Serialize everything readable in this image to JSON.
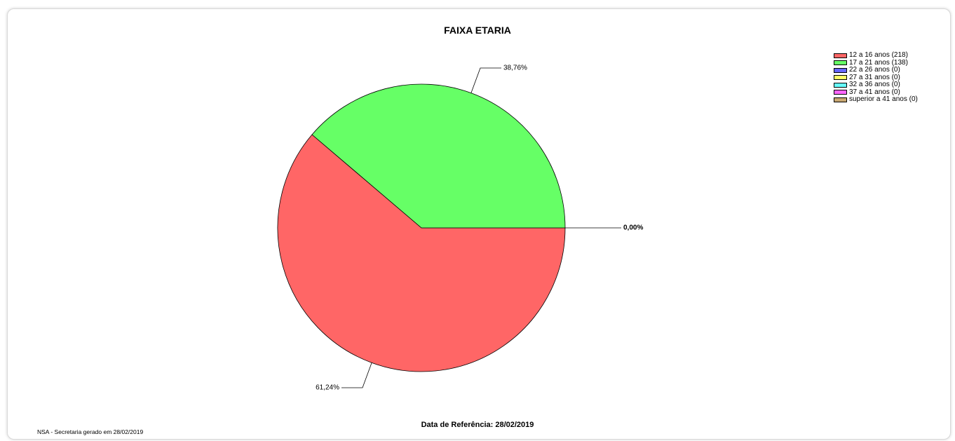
{
  "chart_data": {
    "type": "pie",
    "title": "FAIXA ETARIA",
    "slices": [
      {
        "label": "12 a 16 anos (218)",
        "value": 218,
        "percent_label": "61,24%",
        "color": "#ff6666"
      },
      {
        "label": "17 a 21 anos (138)",
        "value": 138,
        "percent_label": "38,76%",
        "color": "#66ff66"
      },
      {
        "label": "22 a 26 anos (0)",
        "value": 0,
        "percent_label": "0,00%",
        "color": "#6666ff"
      },
      {
        "label": "27 a 31 anos (0)",
        "value": 0,
        "percent_label": "0,00%",
        "color": "#ffff66"
      },
      {
        "label": "32 a 36 anos (0)",
        "value": 0,
        "percent_label": "0,00%",
        "color": "#66ffff"
      },
      {
        "label": "37 a 41 anos (0)",
        "value": 0,
        "percent_label": "0,00%",
        "color": "#ff66ff"
      },
      {
        "label": "superior a 41 anos (0)",
        "value": 0,
        "percent_label": "0,00%",
        "color": "#c8a872"
      }
    ],
    "legend_position": "top-right"
  },
  "footer": {
    "reference_date": "Data de Referência: 28/02/2019",
    "generated_by": "NSA - Secretaria gerado em 28/02/2019"
  }
}
